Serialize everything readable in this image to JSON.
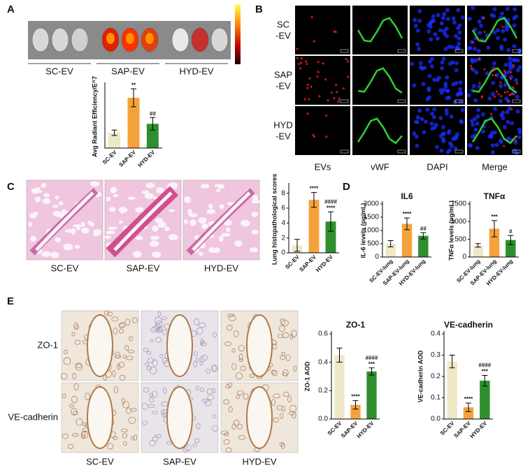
{
  "figure": {
    "panel_a": {
      "label": "A",
      "groups": [
        "SC-EV",
        "SAP-EV",
        "HYD-EV"
      ]
    },
    "panel_b": {
      "label": "B",
      "rows": [
        [
          "SC",
          "-EV"
        ],
        [
          "SAP",
          "-EV"
        ],
        [
          "HYD",
          "-EV"
        ]
      ],
      "columns": [
        "EVs",
        "vWF",
        "DAPI",
        "Merge"
      ]
    },
    "panel_c": {
      "label": "C",
      "columns": [
        "SC-EV",
        "SAP-EV",
        "HYD-EV"
      ]
    },
    "panel_d": {
      "label": "D"
    },
    "panel_e": {
      "label": "E",
      "rows": [
        "ZO-1",
        "VE-cadherin"
      ],
      "columns": [
        "SC-EV",
        "SAP-EV",
        "HYD-EV"
      ]
    }
  },
  "chart_data": [
    {
      "type": "bar",
      "y_label": "Avg Radiant Efficiency/E^7",
      "categories": [
        "SC-EV",
        "SAP-EV",
        "HYD-EV"
      ],
      "values": [
        1.7,
        5.6,
        2.7
      ],
      "errors": [
        0.3,
        1.0,
        0.7
      ],
      "colors": [
        "#efe8c6",
        "#f6a23c",
        "#2f8f2f"
      ],
      "annotations": [
        null,
        [
          "**"
        ],
        [
          "##"
        ]
      ],
      "ylim": [
        0,
        7
      ]
    },
    {
      "type": "bar",
      "y_label": "Lung histopathological scores",
      "categories": [
        "SC-EV",
        "SAP-EV",
        "HYD-EV"
      ],
      "values": [
        1.0,
        7.1,
        4.2
      ],
      "errors": [
        0.8,
        1.0,
        1.3
      ],
      "colors": [
        "#efe8c6",
        "#f6a23c",
        "#2f8f2f"
      ],
      "annotations": [
        null,
        [
          "****"
        ],
        [
          "####",
          "****"
        ]
      ],
      "ylim": [
        0,
        9
      ],
      "yticks": [
        0,
        2,
        4,
        6,
        8
      ]
    },
    {
      "type": "bar",
      "title": "IL6",
      "y_label": "IL-6 levels (pg/mL)",
      "categories": [
        "SC-EV-lung",
        "SAP-EV-lung",
        "HYD-EV-lung"
      ],
      "values": [
        500,
        1250,
        800
      ],
      "errors": [
        120,
        220,
        120
      ],
      "colors": [
        "#efe8c6",
        "#f6a23c",
        "#2f8f2f"
      ],
      "annotations": [
        null,
        [
          "****"
        ],
        [
          "##"
        ]
      ],
      "ylim": [
        0,
        2000
      ],
      "yticks": [
        0,
        500,
        1000,
        1500,
        2000
      ]
    },
    {
      "type": "bar",
      "title": "TNFα",
      "y_label": "TNFα levels (pg/mL)",
      "categories": [
        "SC-EV-lung",
        "SAP-EV-lung",
        "HYD-EV-lung"
      ],
      "values": [
        330,
        800,
        480
      ],
      "errors": [
        50,
        230,
        130
      ],
      "colors": [
        "#efe8c6",
        "#f6a23c",
        "#2f8f2f"
      ],
      "annotations": [
        null,
        [
          "***"
        ],
        [
          "#"
        ]
      ],
      "ylim": [
        0,
        1500
      ],
      "yticks": [
        0,
        500,
        1000,
        1500
      ]
    },
    {
      "type": "bar",
      "title": "ZO-1",
      "y_label": "ZO-1 AOD",
      "categories": [
        "SC-EV",
        "SAP-EV",
        "HYD-EV"
      ],
      "values": [
        0.45,
        0.1,
        0.335
      ],
      "errors": [
        0.05,
        0.03,
        0.025
      ],
      "colors": [
        "#efe8c6",
        "#f6a23c",
        "#2f8f2f"
      ],
      "annotations": [
        null,
        [
          "****"
        ],
        [
          "####",
          "***"
        ]
      ],
      "ylim": [
        0,
        0.6
      ],
      "yticks": [
        {
          "value": 0,
          "label": "0.0"
        },
        0.2,
        0.4,
        0.6
      ]
    },
    {
      "type": "bar",
      "title": "VE-cadherin",
      "y_label": "VE-cadherin AOD",
      "categories": [
        "SC-EV",
        "SAP-EV",
        "HYD-EV"
      ],
      "values": [
        0.27,
        0.055,
        0.18
      ],
      "errors": [
        0.03,
        0.02,
        0.025
      ],
      "colors": [
        "#efe8c6",
        "#f6a23c",
        "#2f8f2f"
      ],
      "annotations": [
        null,
        [
          "****"
        ],
        [
          "####",
          "***"
        ]
      ],
      "ylim": [
        0,
        0.4
      ],
      "yticks": [
        {
          "value": 0,
          "label": "0.0"
        },
        0.1,
        0.2,
        0.3,
        0.4
      ]
    }
  ]
}
